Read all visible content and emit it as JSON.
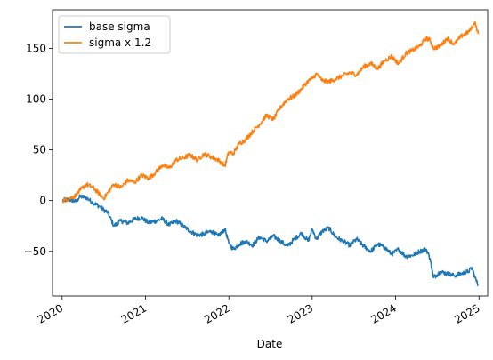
{
  "chart_data": {
    "type": "line",
    "title": "",
    "xlabel": "Date",
    "ylabel": "",
    "xlim": [
      "2019-11-20",
      "2025-02-08"
    ],
    "ylim": [
      -94,
      188
    ],
    "x_ticks": [
      "2020-01-01",
      "2021-01-01",
      "2022-01-01",
      "2023-01-01",
      "2024-01-01",
      "2025-01-01"
    ],
    "x_tick_labels": [
      "2020",
      "2021",
      "2022",
      "2023",
      "2024",
      "2025"
    ],
    "y_ticks": [
      -50,
      0,
      50,
      100,
      150
    ],
    "y_tick_labels": [
      "−50",
      "0",
      "50",
      "100",
      "150"
    ],
    "legend": {
      "position": "upper-left"
    },
    "grid": false,
    "series": [
      {
        "name": "base sigma",
        "color": "#1f77b4",
        "x": [
          "2020-01-03",
          "2020-02-01",
          "2020-03-01",
          "2020-03-20",
          "2020-04-15",
          "2020-05-15",
          "2020-06-15",
          "2020-07-01",
          "2020-07-20",
          "2020-08-15",
          "2020-09-15",
          "2020-10-15",
          "2020-11-15",
          "2020-12-15",
          "2021-01-15",
          "2021-02-15",
          "2021-03-15",
          "2021-04-15",
          "2021-05-15",
          "2021-06-15",
          "2021-07-15",
          "2021-08-15",
          "2021-09-15",
          "2021-10-15",
          "2021-11-15",
          "2021-12-15",
          "2022-01-01",
          "2022-01-20",
          "2022-02-15",
          "2022-03-15",
          "2022-04-15",
          "2022-05-15",
          "2022-06-15",
          "2022-07-15",
          "2022-08-15",
          "2022-09-15",
          "2022-10-15",
          "2022-11-15",
          "2022-12-15",
          "2023-01-01",
          "2023-01-20",
          "2023-02-15",
          "2023-03-15",
          "2023-04-15",
          "2023-05-15",
          "2023-06-15",
          "2023-07-15",
          "2023-08-15",
          "2023-09-15",
          "2023-10-15",
          "2023-11-15",
          "2023-12-15",
          "2024-01-15",
          "2024-02-15",
          "2024-03-15",
          "2024-04-15",
          "2024-05-15",
          "2024-06-01",
          "2024-06-15",
          "2024-07-15",
          "2024-08-15",
          "2024-09-15",
          "2024-10-15",
          "2024-11-15",
          "2024-12-01",
          "2024-12-15",
          "2024-12-29"
        ],
        "values": [
          0,
          1,
          -1,
          4,
          3,
          -2,
          -6,
          -9,
          -12,
          -25,
          -20,
          -22,
          -18,
          -17,
          -22,
          -20,
          -18,
          -24,
          -20,
          -25,
          -30,
          -34,
          -33,
          -30,
          -35,
          -28,
          -42,
          -48,
          -43,
          -40,
          -44,
          -36,
          -40,
          -35,
          -40,
          -45,
          -38,
          -32,
          -40,
          -28,
          -38,
          -30,
          -27,
          -36,
          -40,
          -44,
          -38,
          -45,
          -50,
          -43,
          -46,
          -53,
          -48,
          -55,
          -54,
          -50,
          -48,
          -57,
          -76,
          -70,
          -72,
          -74,
          -72,
          -70,
          -66,
          -76,
          -84
        ]
      },
      {
        "name": "sigma x 1.2",
        "color": "#ff7f0e",
        "x": [
          "2020-01-03",
          "2020-02-01",
          "2020-03-01",
          "2020-03-20",
          "2020-04-15",
          "2020-05-15",
          "2020-06-15",
          "2020-07-01",
          "2020-07-20",
          "2020-08-15",
          "2020-09-15",
          "2020-10-15",
          "2020-11-15",
          "2020-12-15",
          "2021-01-15",
          "2021-02-15",
          "2021-03-15",
          "2021-04-15",
          "2021-05-15",
          "2021-06-15",
          "2021-07-15",
          "2021-08-15",
          "2021-09-15",
          "2021-10-15",
          "2021-11-15",
          "2021-12-15",
          "2022-01-01",
          "2022-01-20",
          "2022-02-15",
          "2022-03-15",
          "2022-04-15",
          "2022-05-15",
          "2022-06-15",
          "2022-07-15",
          "2022-08-15",
          "2022-09-15",
          "2022-10-15",
          "2022-11-15",
          "2022-12-15",
          "2023-01-01",
          "2023-01-20",
          "2023-02-15",
          "2023-03-15",
          "2023-04-15",
          "2023-05-15",
          "2023-06-15",
          "2023-07-15",
          "2023-08-15",
          "2023-09-15",
          "2023-10-15",
          "2023-11-15",
          "2023-12-15",
          "2024-01-15",
          "2024-02-15",
          "2024-03-15",
          "2024-04-15",
          "2024-05-15",
          "2024-06-01",
          "2024-06-15",
          "2024-07-15",
          "2024-08-15",
          "2024-09-15",
          "2024-10-15",
          "2024-11-15",
          "2024-12-01",
          "2024-12-15",
          "2024-12-29"
        ],
        "values": [
          0,
          2,
          5,
          10,
          16,
          13,
          6,
          2,
          8,
          16,
          13,
          20,
          18,
          25,
          22,
          28,
          35,
          32,
          40,
          42,
          45,
          40,
          46,
          43,
          40,
          34,
          48,
          46,
          56,
          60,
          68,
          75,
          84,
          80,
          92,
          100,
          103,
          110,
          118,
          120,
          125,
          118,
          117,
          120,
          123,
          126,
          124,
          132,
          135,
          130,
          138,
          142,
          135,
          145,
          148,
          152,
          160,
          158,
          150,
          152,
          160,
          154,
          162,
          166,
          170,
          176,
          164
        ]
      }
    ]
  }
}
